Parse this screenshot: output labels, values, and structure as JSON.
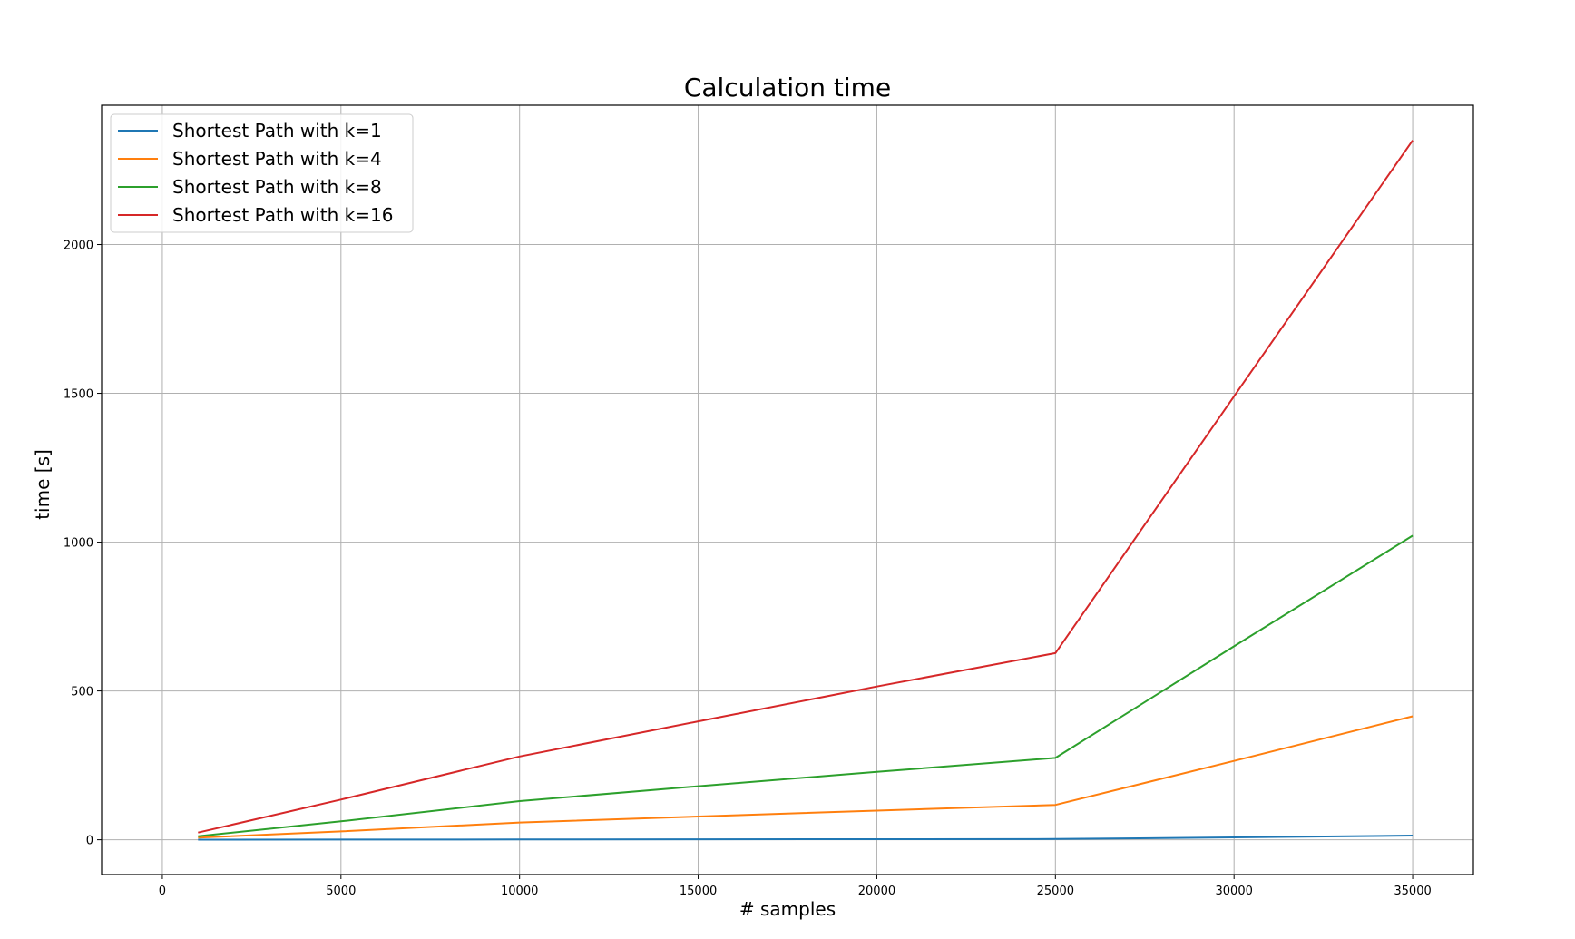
{
  "chart_data": {
    "type": "line",
    "title": "Calculation time",
    "xlabel": "# samples",
    "ylabel": "time [s]",
    "xlim": [
      -1700,
      36700
    ],
    "ylim": [
      -117,
      2468
    ],
    "xticks": [
      0,
      5000,
      10000,
      15000,
      20000,
      25000,
      30000,
      35000
    ],
    "yticks": [
      0,
      500,
      1000,
      1500,
      2000
    ],
    "xtick_labels": [
      "0",
      "5000",
      "10000",
      "15000",
      "20000",
      "25000",
      "30000",
      "35000"
    ],
    "ytick_labels": [
      "0",
      "500",
      "1000",
      "1500",
      "2000"
    ],
    "grid": true,
    "legend_position": "upper-left",
    "x": [
      1000,
      5000,
      10000,
      15000,
      20000,
      25000,
      30000,
      35000
    ],
    "series": [
      {
        "name": "Shortest Path with k=1",
        "color": "#1f77b4",
        "values": [
          0.3,
          0.6,
          1,
          1.5,
          2,
          2.5,
          8,
          14
        ]
      },
      {
        "name": "Shortest Path with k=4",
        "color": "#ff7f0e",
        "values": [
          7,
          28,
          58,
          78,
          98,
          117,
          265,
          415
        ]
      },
      {
        "name": "Shortest Path with k=8",
        "color": "#2ca02c",
        "values": [
          12,
          62,
          130,
          180,
          228,
          275,
          650,
          1022
        ]
      },
      {
        "name": "Shortest Path with k=16",
        "color": "#d62728",
        "values": [
          24,
          135,
          280,
          398,
          515,
          627,
          1490,
          2350
        ]
      }
    ]
  }
}
